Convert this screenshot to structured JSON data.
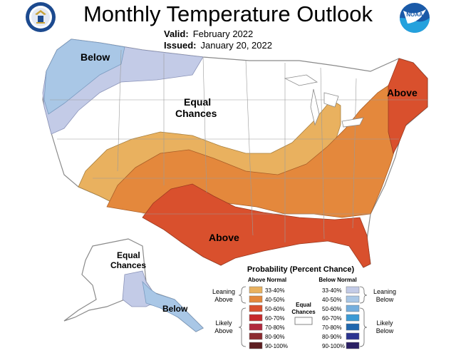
{
  "header": {
    "title": "Monthly Temperature Outlook",
    "valid_label": "Valid:",
    "valid_value": "February 2022",
    "issued_label": "Issued:",
    "issued_value": "January 20, 2022"
  },
  "logos": {
    "left_icon": "department-of-commerce-seal-icon",
    "right_icon": "noaa-logo-icon",
    "right_text": "NOAA"
  },
  "map_labels": {
    "below_nw": "Below",
    "equal_conus_line1": "Equal",
    "equal_conus_line2": "Chances",
    "above_ne": "Above",
    "above_south": "Above",
    "equal_ak_line1": "Equal",
    "equal_ak_line2": "Chances",
    "below_ak": "Below"
  },
  "legend": {
    "title": "Probability (Percent Chance)",
    "above_header": "Above Normal",
    "below_header": "Below Normal",
    "leaning_above_1": "Leaning",
    "leaning_above_2": "Above",
    "likely_above_1": "Likely",
    "likely_above_2": "Above",
    "leaning_below_1": "Leaning",
    "leaning_below_2": "Below",
    "likely_below_1": "Likely",
    "likely_below_2": "Below",
    "equal_1": "Equal",
    "equal_2": "Chances",
    "above_bins": [
      {
        "label": "33-40%",
        "color": "#e9b15f"
      },
      {
        "label": "40-50%",
        "color": "#e4883c"
      },
      {
        "label": "50-60%",
        "color": "#d9502d"
      },
      {
        "label": "60-70%",
        "color": "#c6292a"
      },
      {
        "label": "70-80%",
        "color": "#b0283e"
      },
      {
        "label": "80-90%",
        "color": "#8c2a2f"
      },
      {
        "label": "90-100%",
        "color": "#5c1d20"
      }
    ],
    "below_bins": [
      {
        "label": "33-40%",
        "color": "#c3cbe7"
      },
      {
        "label": "40-50%",
        "color": "#a9c7e6"
      },
      {
        "label": "50-60%",
        "color": "#74aedd"
      },
      {
        "label": "60-70%",
        "color": "#3b9ad4"
      },
      {
        "label": "70-80%",
        "color": "#1f66ad"
      },
      {
        "label": "80-90%",
        "color": "#2b3490"
      },
      {
        "label": "90-100%",
        "color": "#2a1f63"
      }
    ]
  },
  "colors": {
    "above_33_40": "#e9b15f",
    "above_40_50": "#e4883c",
    "above_50_60": "#d9502d",
    "below_33_40": "#c3cbe7",
    "below_40_50": "#a9c7e6"
  }
}
